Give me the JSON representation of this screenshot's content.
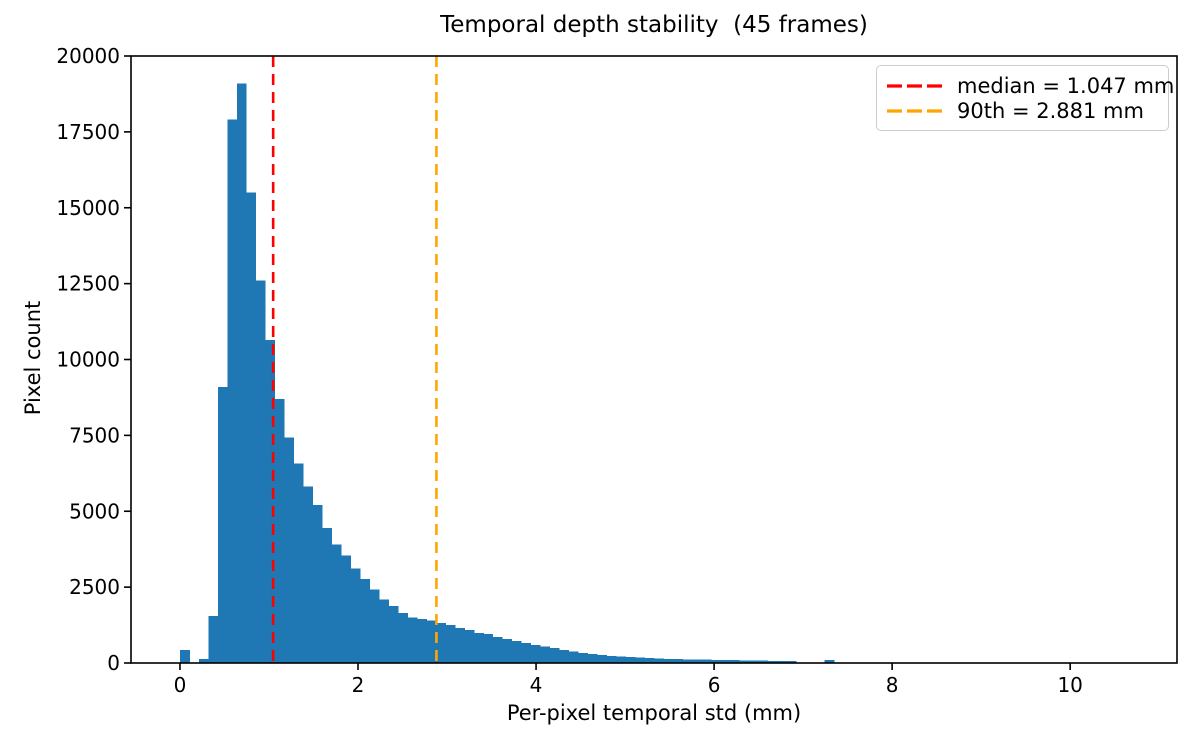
{
  "figure": {
    "title": "Temporal depth stability  (45 frames)"
  },
  "chart_data": {
    "type": "bar",
    "subtype": "histogram",
    "title": "Temporal depth stability  (45 frames)",
    "xlabel": "Per-pixel temporal std (mm)",
    "ylabel": "Pixel count",
    "bar_color": "#1f77b4",
    "grid": false,
    "legend_position": "upper right",
    "xlim": [
      -0.55,
      11.2
    ],
    "ylim": [
      0,
      20000
    ],
    "xtick_values": [
      0,
      2,
      4,
      6,
      8,
      10
    ],
    "xtick_labels": [
      "0",
      "2",
      "4",
      "6",
      "8",
      "10"
    ],
    "ytick_values": [
      0,
      2500,
      5000,
      7500,
      10000,
      12500,
      15000,
      17500,
      20000
    ],
    "ytick_labels": [
      "0",
      "2500",
      "5000",
      "7500",
      "10000",
      "12500",
      "15000",
      "17500",
      "20000"
    ],
    "bin_start": 0,
    "bin_width": 0.1065,
    "counts": [
      430,
      0,
      130,
      1550,
      9100,
      17900,
      19100,
      15500,
      12600,
      10650,
      8700,
      7430,
      6580,
      5820,
      5200,
      4450,
      3910,
      3550,
      3120,
      2760,
      2430,
      2100,
      1880,
      1650,
      1500,
      1450,
      1400,
      1320,
      1250,
      1150,
      1085,
      990,
      950,
      855,
      790,
      720,
      660,
      600,
      545,
      490,
      430,
      380,
      330,
      295,
      265,
      230,
      215,
      200,
      180,
      165,
      150,
      140,
      130,
      120,
      115,
      110,
      105,
      100,
      95,
      88,
      80,
      75,
      72,
      70,
      68,
      0,
      0,
      0,
      100
    ],
    "vlines": [
      {
        "name": "median",
        "value": 1.047,
        "color": "#ff0000",
        "style": "dashed"
      },
      {
        "name": "90th-percentile",
        "value": 2.881,
        "color": "#ffa500",
        "style": "dashed"
      }
    ],
    "legend": {
      "entries": [
        {
          "label": "median = 1.047 mm",
          "color": "#ff0000",
          "linestyle": "dashed"
        },
        {
          "label": "90th = 2.881 mm",
          "color": "#ffa500",
          "linestyle": "dashed"
        }
      ]
    }
  }
}
